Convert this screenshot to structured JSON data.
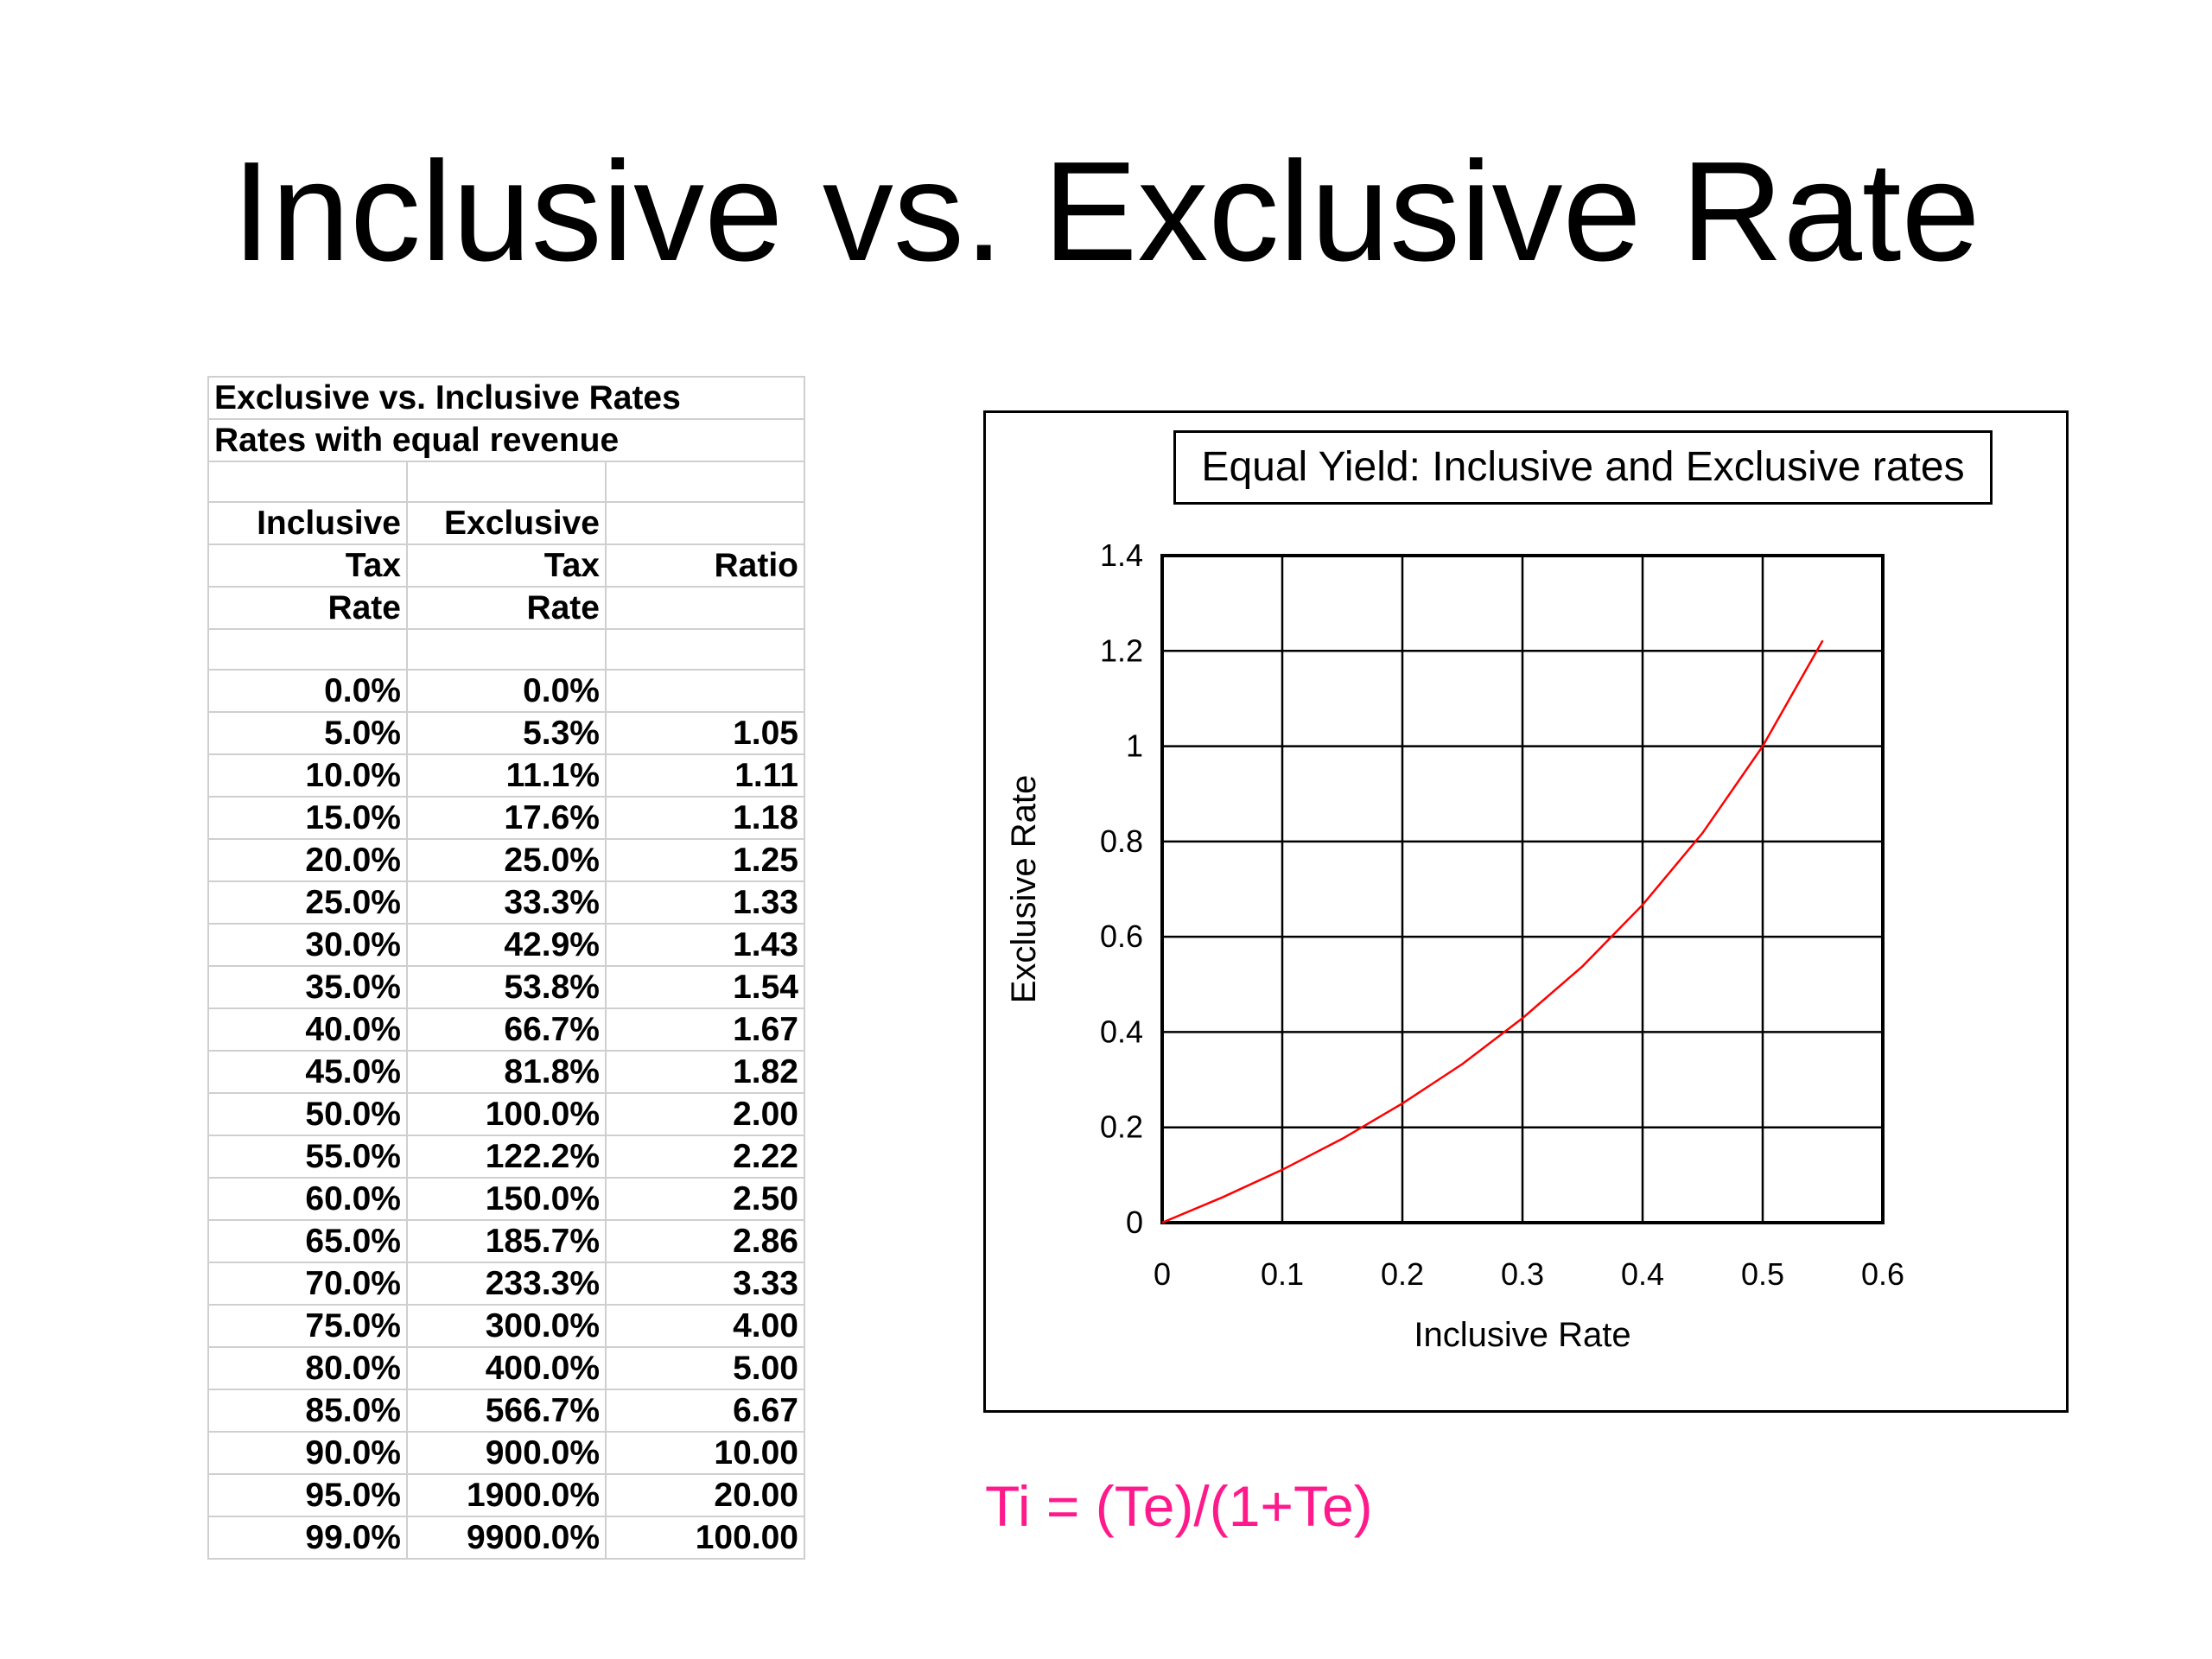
{
  "slide": {
    "title": "Inclusive vs. Exclusive Rate",
    "formula": "Ti = (Te)/(1+Te)"
  },
  "table": {
    "title_line1": "Exclusive vs. Inclusive Rates",
    "title_line2": "Rates with equal revenue",
    "header": [
      [
        "Inclusive",
        "Exclusive",
        ""
      ],
      [
        "Tax",
        "Tax",
        "Ratio"
      ],
      [
        "Rate",
        "Rate",
        ""
      ]
    ],
    "rows": [
      [
        "0.0%",
        "0.0%",
        ""
      ],
      [
        "5.0%",
        "5.3%",
        "1.05"
      ],
      [
        "10.0%",
        "11.1%",
        "1.11"
      ],
      [
        "15.0%",
        "17.6%",
        "1.18"
      ],
      [
        "20.0%",
        "25.0%",
        "1.25"
      ],
      [
        "25.0%",
        "33.3%",
        "1.33"
      ],
      [
        "30.0%",
        "42.9%",
        "1.43"
      ],
      [
        "35.0%",
        "53.8%",
        "1.54"
      ],
      [
        "40.0%",
        "66.7%",
        "1.67"
      ],
      [
        "45.0%",
        "81.8%",
        "1.82"
      ],
      [
        "50.0%",
        "100.0%",
        "2.00"
      ],
      [
        "55.0%",
        "122.2%",
        "2.22"
      ],
      [
        "60.0%",
        "150.0%",
        "2.50"
      ],
      [
        "65.0%",
        "185.7%",
        "2.86"
      ],
      [
        "70.0%",
        "233.3%",
        "3.33"
      ],
      [
        "75.0%",
        "300.0%",
        "4.00"
      ],
      [
        "80.0%",
        "400.0%",
        "5.00"
      ],
      [
        "85.0%",
        "566.7%",
        "6.67"
      ],
      [
        "90.0%",
        "900.0%",
        "10.00"
      ],
      [
        "95.0%",
        "1900.0%",
        "20.00"
      ],
      [
        "99.0%",
        "9900.0%",
        "100.00"
      ]
    ]
  },
  "chart_data": {
    "type": "line",
    "title": "Equal Yield: Inclusive and Exclusive rates",
    "xlabel": "Inclusive Rate",
    "ylabel": "Exclusive Rate",
    "xlim": [
      0,
      0.6
    ],
    "ylim": [
      0,
      1.4
    ],
    "xticks": [
      "0",
      "0.1",
      "0.2",
      "0.3",
      "0.4",
      "0.5",
      "0.6"
    ],
    "yticks": [
      "0",
      "0.2",
      "0.4",
      "0.6",
      "0.8",
      "1",
      "1.2",
      "1.4"
    ],
    "grid": true,
    "series": [
      {
        "color": "#ff0000",
        "x": [
          0,
          0.05,
          0.1,
          0.15,
          0.2,
          0.25,
          0.3,
          0.35,
          0.4,
          0.45,
          0.5,
          0.55
        ],
        "values": [
          0,
          0.053,
          0.111,
          0.176,
          0.25,
          0.333,
          0.429,
          0.538,
          0.667,
          0.818,
          1.0,
          1.222
        ]
      }
    ]
  }
}
